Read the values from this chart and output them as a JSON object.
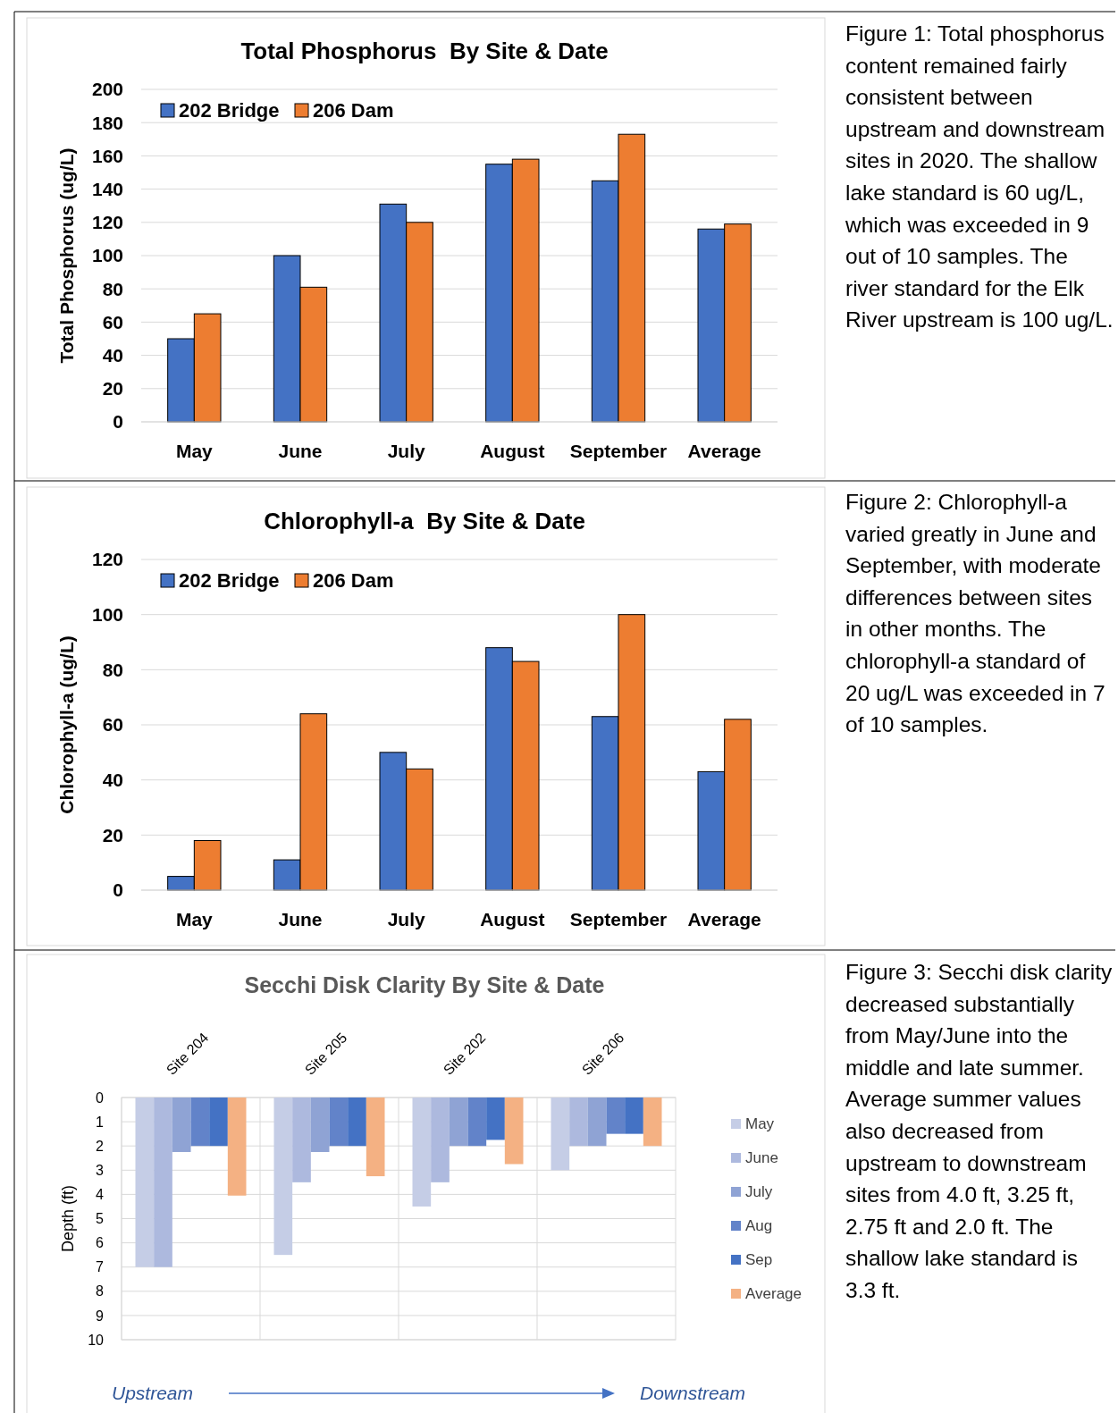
{
  "chart_data": [
    {
      "type": "bar",
      "title": "Total Phosphorus  By Site & Date",
      "ylabel": "Total Phosphorus (ug/L)",
      "categories": [
        "May",
        "June",
        "July",
        "August",
        "September",
        "Average"
      ],
      "series": [
        {
          "name": "202 Bridge",
          "color": "#4472c4",
          "values": [
            50,
            100,
            131,
            155,
            145,
            116
          ]
        },
        {
          "name": "206 Dam",
          "color": "#ed7d31",
          "values": [
            65,
            81,
            120,
            158,
            173,
            119
          ]
        }
      ],
      "ylim": [
        0,
        200
      ],
      "yticks": [
        0,
        20,
        40,
        60,
        80,
        100,
        120,
        140,
        160,
        180,
        200
      ],
      "grid": "y",
      "legend": "top left",
      "annotations": [
        "Figure 1:  Total phosphorus content remained fairly consistent between upstream and downstream sites in 2020.  The shallow lake standard is 60 ug/L, which was exceeded in 9 out of 10 samples.  The river standard for the Elk River upstream is 100 ug/L."
      ]
    },
    {
      "type": "bar",
      "title": "Chlorophyll-a  By Site & Date",
      "ylabel": "Chlorophyll-a (ug/L)",
      "categories": [
        "May",
        "June",
        "July",
        "August",
        "September",
        "Average"
      ],
      "series": [
        {
          "name": "202 Bridge",
          "color": "#4472c4",
          "values": [
            5,
            11,
            50,
            88,
            63,
            43
          ]
        },
        {
          "name": "206 Dam",
          "color": "#ed7d31",
          "values": [
            18,
            64,
            44,
            83,
            100,
            62
          ]
        }
      ],
      "ylim": [
        0,
        120
      ],
      "yticks": [
        0,
        20,
        40,
        60,
        80,
        100,
        120
      ],
      "grid": "y",
      "legend": "top left",
      "annotations": [
        "Figure 2:  Chlorophyll-a varied greatly in June and September, with moderate differences between sites in other months.  The chlorophyll-a standard of 20 ug/L was exceeded in 7 of 10 samples."
      ]
    },
    {
      "type": "bar",
      "title": "Secchi Disk Clarity By Site & Date",
      "ylabel": "Depth (ft)",
      "categories": [
        "Site 204",
        "Site 205",
        "Site 202",
        "Site 206"
      ],
      "series": [
        {
          "name": "May",
          "color": "#c5cde6",
          "values": [
            7,
            6.5,
            4.5,
            3
          ]
        },
        {
          "name": "June",
          "color": "#adb9de",
          "values": [
            7,
            3.5,
            3.5,
            2
          ]
        },
        {
          "name": "July",
          "color": "#8fa3d4",
          "values": [
            2.25,
            2.25,
            2,
            2
          ]
        },
        {
          "name": "Aug",
          "color": "#6283c9",
          "values": [
            2,
            2,
            2,
            1.5
          ]
        },
        {
          "name": "Sep",
          "color": "#4472c4",
          "values": [
            2,
            2,
            1.75,
            1.5
          ]
        },
        {
          "name": "Average",
          "color": "#f4b183",
          "values": [
            4.05,
            3.25,
            2.75,
            2
          ]
        }
      ],
      "ylim": [
        10,
        0
      ],
      "yticks": [
        0,
        1,
        2,
        3,
        4,
        5,
        6,
        7,
        8,
        9,
        10
      ],
      "grid": true,
      "legend": "right",
      "annotations": [
        "Upstream",
        "Downstream",
        "Figure 3:  Secchi disk clarity decreased substantially from May/June into the middle and late summer.  Average summer values also decreased from upstream to downstream sites from 4.0 ft, 3.25 ft, 2.75 ft and 2.0 ft.  The shallow lake standard is 3.3 ft."
      ]
    }
  ]
}
